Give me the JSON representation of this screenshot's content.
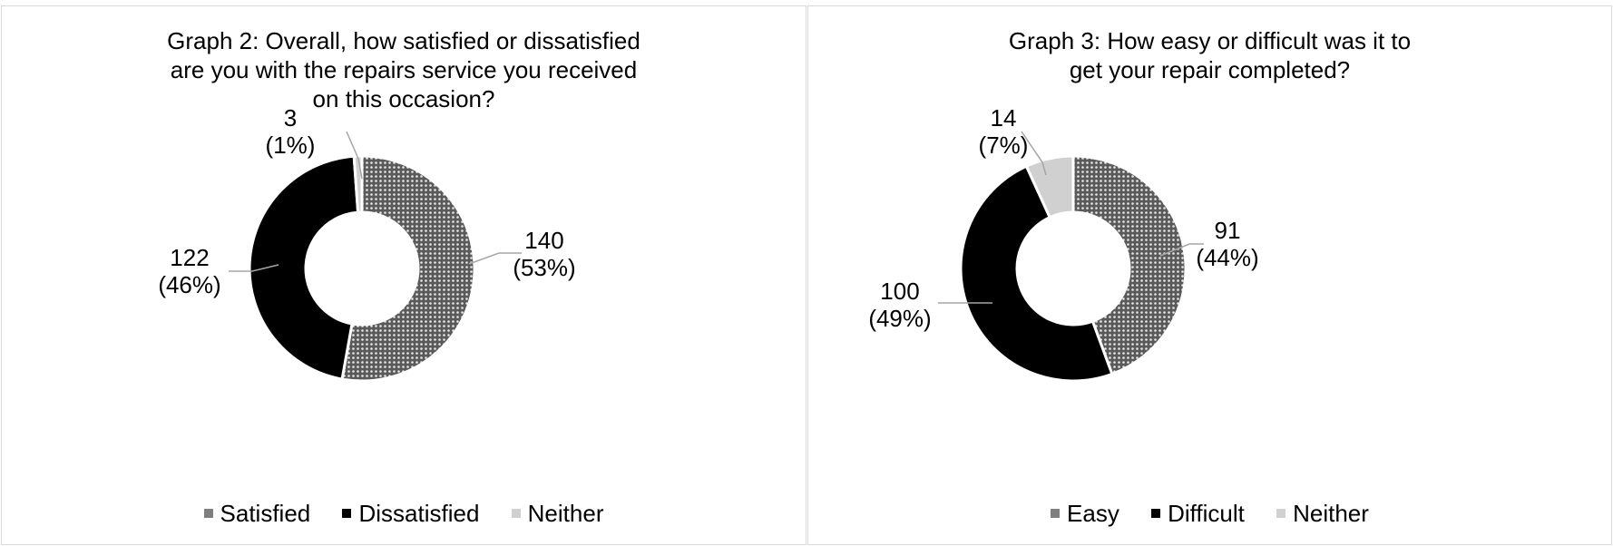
{
  "chart_data": [
    {
      "type": "pie",
      "title": "Graph 2: Overall, how satisfied or dissatisfied are you with the repairs service you received on this occasion?",
      "categories": [
        "Satisfied",
        "Dissatisfied",
        "Neither"
      ],
      "values": [
        140,
        122,
        3
      ],
      "percent_labels": [
        "(53%)",
        "(46%)",
        "(1%)"
      ],
      "colors": [
        "#7f7f7f",
        "#000000",
        "#d0d0d0"
      ],
      "legend": "bottom",
      "donut": true
    },
    {
      "type": "pie",
      "title": "Graph 3: How easy or difficult was it to get your repair completed?",
      "categories": [
        "Easy",
        "Difficult",
        "Neither"
      ],
      "values": [
        91,
        100,
        14
      ],
      "percent_labels": [
        "(44%)",
        "(49%)",
        "(7%)"
      ],
      "colors": [
        "#7f7f7f",
        "#000000",
        "#d0d0d0"
      ],
      "legend": "bottom",
      "donut": true
    }
  ]
}
